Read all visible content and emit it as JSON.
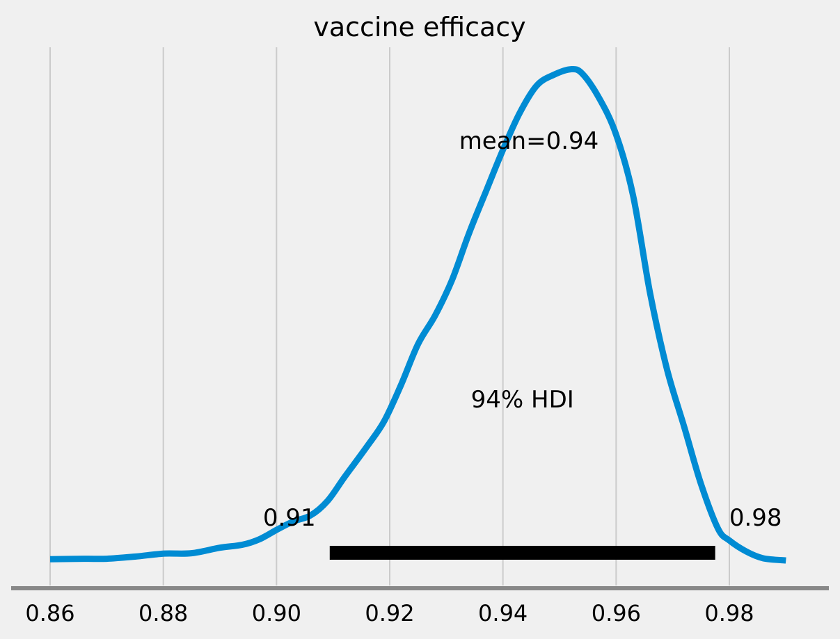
{
  "chart_data": {
    "type": "area",
    "title": "vaccine efficacy",
    "xlabel": "",
    "ylabel": "",
    "xlim": [
      0.86,
      0.99
    ],
    "grid": "vertical",
    "x_ticks": [
      {
        "value": 0.86,
        "label": "0.86"
      },
      {
        "value": 0.88,
        "label": "0.88"
      },
      {
        "value": 0.9,
        "label": "0.90"
      },
      {
        "value": 0.92,
        "label": "0.92"
      },
      {
        "value": 0.94,
        "label": "0.94"
      },
      {
        "value": 0.96,
        "label": "0.96"
      },
      {
        "value": 0.98,
        "label": "0.98"
      }
    ],
    "density": {
      "color": "#008bd3",
      "points": [
        [
          0.86,
          0.003
        ],
        [
          0.866,
          0.004
        ],
        [
          0.87,
          0.004
        ],
        [
          0.875,
          0.009
        ],
        [
          0.88,
          0.016
        ],
        [
          0.885,
          0.017
        ],
        [
          0.89,
          0.03
        ],
        [
          0.894,
          0.037
        ],
        [
          0.897,
          0.05
        ],
        [
          0.9,
          0.072
        ],
        [
          0.903,
          0.092
        ],
        [
          0.906,
          0.106
        ],
        [
          0.909,
          0.14
        ],
        [
          0.912,
          0.196
        ],
        [
          0.916,
          0.269
        ],
        [
          0.919,
          0.328
        ],
        [
          0.922,
          0.414
        ],
        [
          0.925,
          0.51
        ],
        [
          0.928,
          0.577
        ],
        [
          0.931,
          0.661
        ],
        [
          0.934,
          0.771
        ],
        [
          0.937,
          0.87
        ],
        [
          0.94,
          0.968
        ],
        [
          0.943,
          1.056
        ],
        [
          0.946,
          1.12
        ],
        [
          0.949,
          1.145
        ],
        [
          0.952,
          1.158
        ],
        [
          0.954,
          1.148
        ],
        [
          0.957,
          1.09
        ],
        [
          0.96,
          1.004
        ],
        [
          0.963,
          0.86
        ],
        [
          0.966,
          0.63
        ],
        [
          0.969,
          0.45
        ],
        [
          0.972,
          0.316
        ],
        [
          0.975,
          0.18
        ],
        [
          0.978,
          0.075
        ],
        [
          0.98,
          0.047
        ],
        [
          0.983,
          0.021
        ],
        [
          0.986,
          0.005
        ],
        [
          0.99,
          0.0
        ]
      ]
    },
    "mean": {
      "value": 0.94,
      "label": "mean=0.94"
    },
    "hdi": {
      "label": "94% HDI",
      "low": 0.9094,
      "high": 0.9775,
      "low_label": "0.91",
      "high_label": "0.98",
      "color": "#000000"
    },
    "colors": {
      "background": "#f0f0f0",
      "grid": "#cbcbcb",
      "axis": "#888888"
    }
  }
}
